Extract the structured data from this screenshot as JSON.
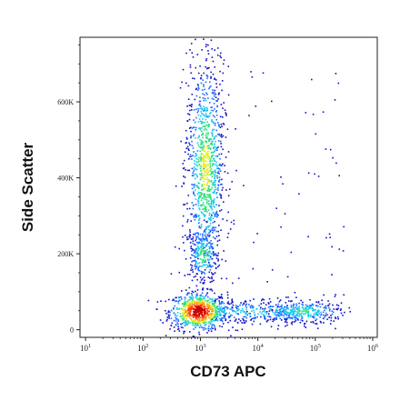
{
  "chart_data": {
    "type": "scatter",
    "subtype": "flow-cytometry-density-dot-plot",
    "title": "",
    "xlabel": "CD73 APC",
    "ylabel": "Side Scatter",
    "x_scale": "log",
    "y_scale": "linear",
    "xlim": [
      8,
      1200000
    ],
    "ylim": [
      -20000,
      770000
    ],
    "x_ticks": [
      {
        "value": 10,
        "base": "10",
        "exp": "1"
      },
      {
        "value": 100,
        "base": "10",
        "exp": "2"
      },
      {
        "value": 1000,
        "base": "10",
        "exp": "3"
      },
      {
        "value": 10000,
        "base": "10",
        "exp": "4"
      },
      {
        "value": 100000,
        "base": "10",
        "exp": "5"
      },
      {
        "value": 1000000,
        "base": "10",
        "exp": "6"
      }
    ],
    "y_ticks": [
      {
        "value": 0,
        "label": "0"
      },
      {
        "value": 200000,
        "label": "200K"
      },
      {
        "value": 400000,
        "label": "400K"
      },
      {
        "value": 600000,
        "label": "600K"
      }
    ],
    "grid": false,
    "legend": "none",
    "colormap": [
      "#1010c8",
      "#1e6cff",
      "#19c8f0",
      "#2ee07a",
      "#e4ef25",
      "#ffa012",
      "#ff3a0c",
      "#c80000"
    ],
    "populations": [
      {
        "name_hint": "CD73-low SSC-low cluster",
        "x_center": 900,
        "y_center": 50000,
        "x_spread_decades": 0.25,
        "y_spread": 25000,
        "weight": 0.3,
        "peak_density": 1.0
      },
      {
        "name_hint": "CD73-mid vertical band",
        "x_center": 1200,
        "y_center": 430000,
        "x_spread_decades": 0.16,
        "y_spread": 140000,
        "y_range": [
          120000,
          770000
        ],
        "weight": 0.4,
        "peak_density": 0.55
      },
      {
        "name_hint": "lower band knot",
        "x_center": 1100,
        "y_center": 200000,
        "x_spread_decades": 0.14,
        "y_spread": 35000,
        "weight": 0.08,
        "peak_density": 0.45
      },
      {
        "name_hint": "CD73-high SSC-low cluster",
        "x_center": 60000,
        "y_center": 50000,
        "x_spread_decades": 0.35,
        "y_spread": 15000,
        "weight": 0.12,
        "peak_density": 0.4
      },
      {
        "name_hint": "bridge",
        "x_range": [
          1500,
          50000
        ],
        "y_center": 50000,
        "y_spread": 15000,
        "weight": 0.1,
        "peak_density": 0.3
      }
    ]
  }
}
